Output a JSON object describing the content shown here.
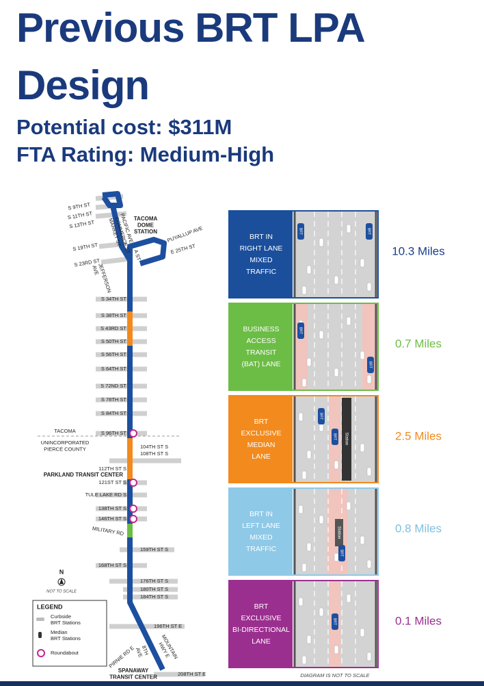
{
  "header": {
    "title": [
      "Previous BRT LPA",
      "Design"
    ],
    "subtitle": [
      "Potential cost: $311M",
      "FTA Rating: Medium-High"
    ]
  },
  "map": {
    "labels": [
      "S 9TH ST",
      "S 11TH ST",
      "S 13TH ST",
      "PACIFIC AVE",
      "COMMERCE ST",
      "MARKET ST",
      [
        "TACOMA",
        "DOME",
        "STATION"
      ],
      "PUYALLUP AVE",
      "E 25TH ST",
      "S 19TH ST",
      "S 23RD ST",
      [
        "JEFFERSON",
        "AVE"
      ],
      "A ST",
      "S 34TH ST",
      "S 38TH ST",
      "S 43RD ST",
      "S 50TH ST",
      "S 56TH ST",
      "S 64TH ST",
      "S 72ND ST",
      "S 78TH ST",
      "S 84TH ST",
      "S 96TH ST",
      "TACOMA",
      [
        "UNINCORPORATED",
        "PIERCE COUNTY"
      ],
      "104TH ST S",
      "108TH ST S",
      "112TH ST S",
      "PARKLAND TRANSIT CENTER",
      "121ST ST S",
      "TULE LAKE RD S",
      "138TH ST S",
      "146TH ST S",
      "MILITARY RD",
      "159TH ST S",
      "168TH ST S",
      "176TH ST S",
      "180TH ST S",
      "184TH ST S",
      "196TH ST E",
      "PIRNIE RD E",
      [
        "8TH",
        "AVE"
      ],
      [
        "MOUNTAIN",
        "HWY E"
      ],
      [
        "SPANAWAY",
        "TRANSIT CENTER"
      ],
      "208TH ST E"
    ],
    "north": "N",
    "scale_note": "NOT TO SCALE",
    "legend": {
      "title": "LEGEND",
      "items": [
        [
          "Curbside",
          "BRT Stations"
        ],
        [
          "Median",
          "BRT Stations"
        ],
        [
          "Roundabout"
        ]
      ]
    }
  },
  "panels": [
    {
      "label": [
        "BRT IN",
        "RIGHT LANE",
        "MIXED",
        "TRAFFIC"
      ],
      "miles": "10.3 Miles"
    },
    {
      "label": [
        "BUSINESS",
        "ACCESS",
        "TRANSIT",
        "(BAT) LANE"
      ],
      "miles": "0.7 Miles"
    },
    {
      "label": [
        "BRT",
        "EXCLUSIVE",
        "MEDIAN",
        "LANE"
      ],
      "miles": "2.5 Miles"
    },
    {
      "label": [
        "BRT IN",
        "LEFT LANE",
        "MIXED",
        "TRAFFIC"
      ],
      "miles": "0.8 Miles"
    },
    {
      "label": [
        "BRT",
        "EXCLUSIVE",
        "BI-DIRECTIONAL",
        "LANE"
      ],
      "miles": "0.1 Miles"
    }
  ],
  "bus_label": "BRT",
  "station_label": "Station",
  "diagram_note": "DIAGRAM IS NOT TO SCALE"
}
